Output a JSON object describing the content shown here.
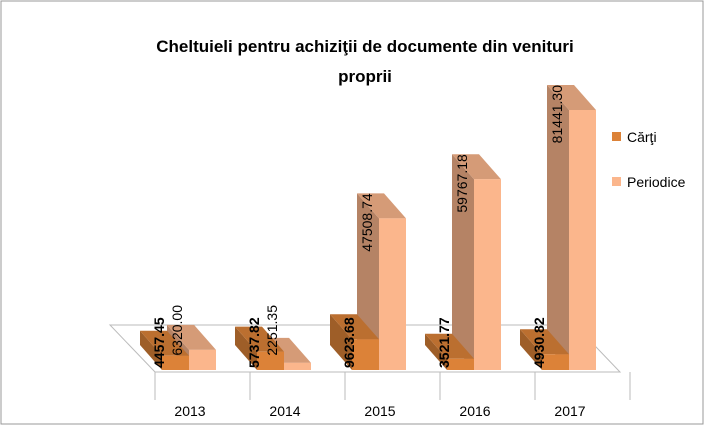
{
  "chart_data": {
    "type": "bar3d",
    "title": "Cheltuieli pentru achiziţii de documente din venituri proprii",
    "categories": [
      "2013",
      "2014",
      "2015",
      "2016",
      "2017"
    ],
    "series": [
      {
        "name": "Cărţi",
        "color": "#dc8238",
        "values": [
          4457.45,
          5737.82,
          9623.68,
          3521.77,
          4930.82
        ],
        "value_labels": [
          "4457.45",
          "5737.82",
          "9623.68",
          "3521.77",
          "4930.82"
        ]
      },
      {
        "name": "Periodice",
        "color": "#fbb68c",
        "values": [
          6320.0,
          2251.35,
          47508.74,
          59767.18,
          81441.3
        ],
        "value_labels": [
          "6320.00",
          "2251.35",
          "47508.74",
          "59767.18",
          "81441.30"
        ]
      }
    ],
    "legend": "right"
  }
}
